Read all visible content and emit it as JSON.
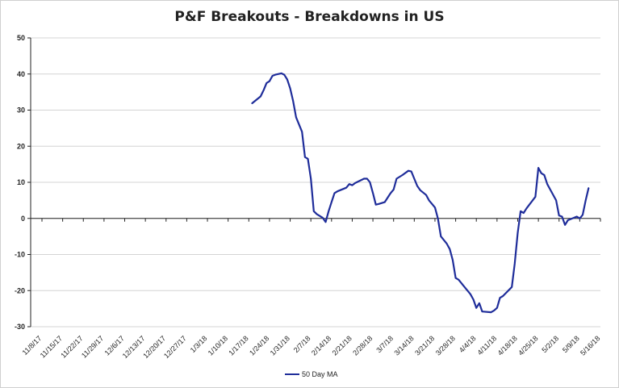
{
  "chart_data": {
    "type": "line",
    "title": "P&F Breakouts - Breakdowns in US",
    "xlabel": "",
    "ylabel": "",
    "ylim": [
      -30,
      50
    ],
    "yticks": [
      50,
      40,
      30,
      20,
      10,
      0,
      -10,
      -20,
      -30
    ],
    "xticks": [
      "11/8/17",
      "11/15/17",
      "11/22/17",
      "11/29/17",
      "12/6/17",
      "12/13/17",
      "12/20/17",
      "12/27/17",
      "1/3/18",
      "1/10/18",
      "1/17/18",
      "1/24/18",
      "1/31/18",
      "2/7/18",
      "2/14/18",
      "2/21/18",
      "2/28/18",
      "3/7/18",
      "3/14/18",
      "3/21/18",
      "3/28/18",
      "4/4/18",
      "4/11/18",
      "4/18/18",
      "4/25/18",
      "5/2/18",
      "5/9/18",
      "5/16/18"
    ],
    "legend_position": "bottom",
    "grid": "horizontal",
    "line_color": "#1f2d9a",
    "series": [
      {
        "name": "50 Day MA",
        "points": [
          [
            "1/18/18",
            31.8
          ],
          [
            "1/21/18",
            33.8
          ],
          [
            "1/22/18",
            35.5
          ],
          [
            "1/23/18",
            37.5
          ],
          [
            "1/24/18",
            38.0
          ],
          [
            "1/25/18",
            39.5
          ],
          [
            "1/26/18",
            39.8
          ],
          [
            "1/28/18",
            40.2
          ],
          [
            "1/29/18",
            39.8
          ],
          [
            "1/30/18",
            38.5
          ],
          [
            "1/31/18",
            36.0
          ],
          [
            "2/1/18",
            32.5
          ],
          [
            "2/2/18",
            28.0
          ],
          [
            "2/4/18",
            24.0
          ],
          [
            "2/5/18",
            17.0
          ],
          [
            "2/6/18",
            16.5
          ],
          [
            "2/7/18",
            11.0
          ],
          [
            "2/8/18",
            2.0
          ],
          [
            "2/9/18",
            1.2
          ],
          [
            "2/11/18",
            0.2
          ],
          [
            "2/12/18",
            -1.0
          ],
          [
            "2/13/18",
            2.0
          ],
          [
            "2/14/18",
            4.5
          ],
          [
            "2/15/18",
            7.0
          ],
          [
            "2/16/18",
            7.5
          ],
          [
            "2/19/18",
            8.5
          ],
          [
            "2/20/18",
            9.5
          ],
          [
            "2/21/18",
            9.2
          ],
          [
            "2/22/18",
            9.8
          ],
          [
            "2/25/18",
            11.0
          ],
          [
            "2/26/18",
            11.0
          ],
          [
            "2/27/18",
            10.0
          ],
          [
            "2/28/18",
            7.0
          ],
          [
            "3/1/18",
            3.8
          ],
          [
            "3/2/18",
            4.0
          ],
          [
            "3/4/18",
            4.5
          ],
          [
            "3/6/18",
            7.0
          ],
          [
            "3/7/18",
            8.0
          ],
          [
            "3/8/18",
            11.0
          ],
          [
            "3/10/18",
            12.0
          ],
          [
            "3/12/18",
            13.2
          ],
          [
            "3/13/18",
            13.0
          ],
          [
            "3/14/18",
            11.0
          ],
          [
            "3/15/18",
            9.0
          ],
          [
            "3/16/18",
            7.8
          ],
          [
            "3/18/18",
            6.5
          ],
          [
            "3/19/18",
            5.0
          ],
          [
            "3/20/18",
            4.0
          ],
          [
            "3/21/18",
            3.0
          ],
          [
            "3/22/18",
            0.0
          ],
          [
            "3/23/18",
            -5.0
          ],
          [
            "3/25/18",
            -7.0
          ],
          [
            "3/26/18",
            -8.5
          ],
          [
            "3/27/18",
            -11.5
          ],
          [
            "3/28/18",
            -16.5
          ],
          [
            "3/29/18",
            -17.0
          ],
          [
            "3/31/18",
            -19.0
          ],
          [
            "4/2/18",
            -21.0
          ],
          [
            "4/3/18",
            -22.5
          ],
          [
            "4/4/18",
            -24.8
          ],
          [
            "4/5/18",
            -23.5
          ],
          [
            "4/6/18",
            -25.8
          ],
          [
            "4/9/18",
            -26.0
          ],
          [
            "4/10/18",
            -25.5
          ],
          [
            "4/11/18",
            -24.8
          ],
          [
            "4/12/18",
            -22.0
          ],
          [
            "4/13/18",
            -21.5
          ],
          [
            "4/16/18",
            -19.0
          ],
          [
            "4/17/18",
            -12.5
          ],
          [
            "4/18/18",
            -4.0
          ],
          [
            "4/19/18",
            2.0
          ],
          [
            "4/20/18",
            1.5
          ],
          [
            "4/21/18",
            2.8
          ],
          [
            "4/24/18",
            6.0
          ],
          [
            "4/25/18",
            14.0
          ],
          [
            "4/26/18",
            12.5
          ],
          [
            "4/27/18",
            12.0
          ],
          [
            "4/28/18",
            9.5
          ],
          [
            "4/29/18",
            8.0
          ],
          [
            "5/1/18",
            5.0
          ],
          [
            "5/2/18",
            0.8
          ],
          [
            "5/3/18",
            0.5
          ],
          [
            "5/4/18",
            -1.8
          ],
          [
            "5/5/18",
            -0.5
          ],
          [
            "5/8/18",
            0.5
          ],
          [
            "5/9/18",
            0.0
          ],
          [
            "5/10/18",
            1.0
          ],
          [
            "5/11/18",
            5.0
          ],
          [
            "5/12/18",
            8.5
          ]
        ]
      }
    ]
  }
}
